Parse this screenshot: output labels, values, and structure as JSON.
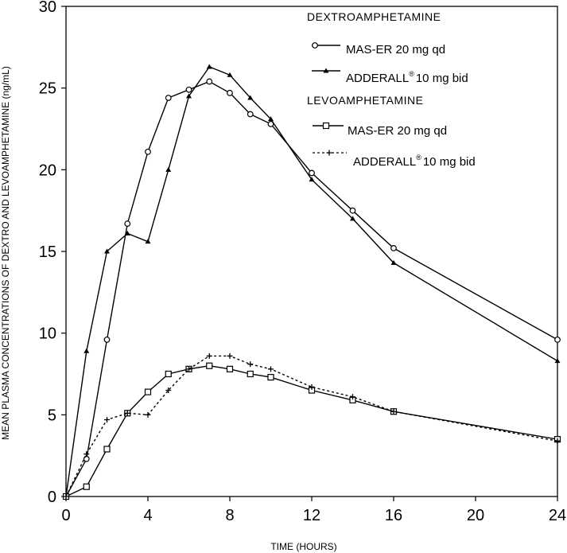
{
  "chart_data": {
    "type": "line",
    "xlabel": "TIME (HOURS)",
    "ylabel": "MEAN  PLASMA CONCENTRATIONS OF DEXTRO AND LEVOAMPHETAMINE (ng/mL)",
    "xlim": [
      0,
      24
    ],
    "ylim": [
      0,
      30
    ],
    "xticks": [
      "0",
      "4",
      "8",
      "12",
      "16",
      "20",
      "24"
    ],
    "yticks": [
      "0",
      "5",
      "10",
      "15",
      "20",
      "25",
      "30"
    ],
    "grid": false,
    "legend_position": "top-right",
    "legend": {
      "group1": "DEXTROAMPHETAMINE",
      "group2": "LEVOAMPHETAMINE",
      "dextro_maser": "MAS-ER 20 mg qd",
      "dextro_adderall": "ADDERALL",
      "dextro_adderall_sup": "®",
      "dextro_adderall_dose": "10 mg bid",
      "levo_maser": "MAS-ER 20 mg qd",
      "levo_adderall": "ADDERALL",
      "levo_adderall_sup": "®",
      "levo_adderall_dose": "10 mg bid"
    },
    "series": [
      {
        "name": "MAS-ER 20 mg qd (Dextroamphetamine)",
        "marker": "circle",
        "dash": "solid",
        "x": [
          0,
          1,
          2,
          3,
          4,
          5,
          6,
          7,
          8,
          9,
          10,
          12,
          14,
          16,
          24
        ],
        "y": [
          0,
          2.3,
          9.6,
          16.7,
          21.1,
          24.4,
          24.9,
          25.4,
          24.7,
          23.4,
          22.8,
          19.8,
          17.5,
          15.2,
          9.6
        ]
      },
      {
        "name": "ADDERALL 10 mg bid (Dextroamphetamine)",
        "marker": "triangle",
        "dash": "solid",
        "x": [
          0,
          1,
          2,
          3,
          4,
          5,
          6,
          7,
          8,
          9,
          10,
          12,
          14,
          16,
          24
        ],
        "y": [
          0,
          8.9,
          15.0,
          16.1,
          15.6,
          20.0,
          24.5,
          26.3,
          25.8,
          24.4,
          23.1,
          19.4,
          17.0,
          14.3,
          8.3
        ]
      },
      {
        "name": "MAS-ER 20 mg qd (Levoamphetamine)",
        "marker": "square",
        "dash": "solid",
        "x": [
          0,
          1,
          2,
          3,
          4,
          5,
          6,
          7,
          8,
          9,
          10,
          12,
          14,
          16,
          24
        ],
        "y": [
          0,
          0.6,
          2.9,
          5.1,
          6.4,
          7.5,
          7.8,
          8.0,
          7.8,
          7.5,
          7.3,
          6.5,
          5.9,
          5.2,
          3.5
        ]
      },
      {
        "name": "ADDERALL 10 mg bid (Levoamphetamine)",
        "marker": "plus",
        "dash": "dashed",
        "x": [
          0,
          1,
          2,
          3,
          4,
          5,
          6,
          7,
          8,
          9,
          10,
          12,
          14,
          16,
          24
        ],
        "y": [
          0,
          2.6,
          4.7,
          5.1,
          5.0,
          6.5,
          7.8,
          8.6,
          8.6,
          8.1,
          7.8,
          6.7,
          6.1,
          5.2,
          3.4
        ]
      }
    ]
  }
}
